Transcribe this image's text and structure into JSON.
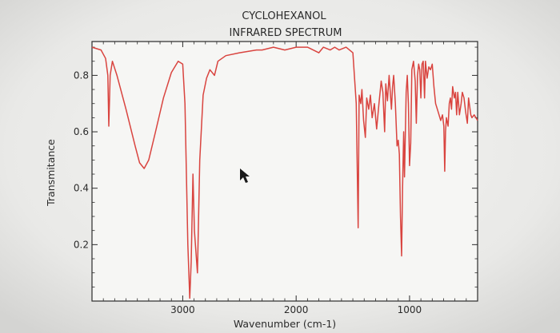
{
  "chart_data": {
    "type": "line",
    "title": "CYCLOHEXANOL",
    "subtitle": "INFRARED SPECTRUM",
    "xlabel": "Wavenumber (cm-1)",
    "ylabel": "Transmitance",
    "xlim": [
      3800,
      400
    ],
    "ylim": [
      0.0,
      0.92
    ],
    "x_reversed": true,
    "grid": false,
    "x_ticks": [
      3000,
      2000,
      1000
    ],
    "y_ticks": [
      0.2,
      0.4,
      0.6,
      0.8
    ],
    "y_tick_labels": [
      "0.2",
      "0.4",
      "0.6",
      "0.8"
    ],
    "series": [
      {
        "color": "#d9443f",
        "points": [
          [
            3800,
            0.9
          ],
          [
            3720,
            0.89
          ],
          [
            3680,
            0.86
          ],
          [
            3660,
            0.8
          ],
          [
            3652,
            0.62
          ],
          [
            3640,
            0.8
          ],
          [
            3620,
            0.85
          ],
          [
            3580,
            0.8
          ],
          [
            3500,
            0.68
          ],
          [
            3420,
            0.55
          ],
          [
            3380,
            0.49
          ],
          [
            3340,
            0.47
          ],
          [
            3300,
            0.5
          ],
          [
            3240,
            0.6
          ],
          [
            3170,
            0.72
          ],
          [
            3100,
            0.81
          ],
          [
            3040,
            0.85
          ],
          [
            3000,
            0.84
          ],
          [
            2980,
            0.7
          ],
          [
            2955,
            0.2
          ],
          [
            2938,
            0.01
          ],
          [
            2925,
            0.14
          ],
          [
            2910,
            0.45
          ],
          [
            2897,
            0.25
          ],
          [
            2870,
            0.1
          ],
          [
            2850,
            0.5
          ],
          [
            2820,
            0.73
          ],
          [
            2790,
            0.79
          ],
          [
            2760,
            0.82
          ],
          [
            2720,
            0.8
          ],
          [
            2690,
            0.85
          ],
          [
            2620,
            0.87
          ],
          [
            2500,
            0.88
          ],
          [
            2350,
            0.89
          ],
          [
            2300,
            0.89
          ],
          [
            2200,
            0.9
          ],
          [
            2100,
            0.89
          ],
          [
            2000,
            0.9
          ],
          [
            1900,
            0.9
          ],
          [
            1800,
            0.88
          ],
          [
            1760,
            0.9
          ],
          [
            1700,
            0.89
          ],
          [
            1660,
            0.9
          ],
          [
            1620,
            0.89
          ],
          [
            1560,
            0.9
          ],
          [
            1500,
            0.88
          ],
          [
            1470,
            0.7
          ],
          [
            1453,
            0.26
          ],
          [
            1445,
            0.73
          ],
          [
            1430,
            0.7
          ],
          [
            1420,
            0.75
          ],
          [
            1405,
            0.64
          ],
          [
            1390,
            0.58
          ],
          [
            1378,
            0.72
          ],
          [
            1360,
            0.68
          ],
          [
            1345,
            0.73
          ],
          [
            1330,
            0.65
          ],
          [
            1310,
            0.7
          ],
          [
            1290,
            0.61
          ],
          [
            1270,
            0.7
          ],
          [
            1250,
            0.78
          ],
          [
            1235,
            0.74
          ],
          [
            1220,
            0.6
          ],
          [
            1210,
            0.77
          ],
          [
            1195,
            0.71
          ],
          [
            1180,
            0.8
          ],
          [
            1160,
            0.68
          ],
          [
            1150,
            0.76
          ],
          [
            1140,
            0.8
          ],
          [
            1125,
            0.7
          ],
          [
            1110,
            0.55
          ],
          [
            1100,
            0.57
          ],
          [
            1090,
            0.52
          ],
          [
            1080,
            0.3
          ],
          [
            1070,
            0.16
          ],
          [
            1062,
            0.4
          ],
          [
            1052,
            0.6
          ],
          [
            1045,
            0.44
          ],
          [
            1038,
            0.58
          ],
          [
            1030,
            0.74
          ],
          [
            1020,
            0.8
          ],
          [
            1010,
            0.7
          ],
          [
            1000,
            0.48
          ],
          [
            990,
            0.56
          ],
          [
            980,
            0.82
          ],
          [
            965,
            0.85
          ],
          [
            950,
            0.78
          ],
          [
            940,
            0.63
          ],
          [
            930,
            0.8
          ],
          [
            920,
            0.84
          ],
          [
            910,
            0.82
          ],
          [
            900,
            0.72
          ],
          [
            890,
            0.84
          ],
          [
            880,
            0.85
          ],
          [
            868,
            0.72
          ],
          [
            860,
            0.85
          ],
          [
            845,
            0.79
          ],
          [
            830,
            0.83
          ],
          [
            815,
            0.82
          ],
          [
            800,
            0.84
          ],
          [
            785,
            0.76
          ],
          [
            770,
            0.7
          ],
          [
            755,
            0.68
          ],
          [
            740,
            0.66
          ],
          [
            725,
            0.64
          ],
          [
            710,
            0.66
          ],
          [
            698,
            0.62
          ],
          [
            690,
            0.46
          ],
          [
            683,
            0.6
          ],
          [
            675,
            0.65
          ],
          [
            660,
            0.62
          ],
          [
            650,
            0.7
          ],
          [
            640,
            0.72
          ],
          [
            630,
            0.68
          ],
          [
            620,
            0.76
          ],
          [
            605,
            0.72
          ],
          [
            595,
            0.74
          ],
          [
            585,
            0.66
          ],
          [
            575,
            0.74
          ],
          [
            560,
            0.66
          ],
          [
            545,
            0.7
          ],
          [
            535,
            0.74
          ],
          [
            520,
            0.72
          ],
          [
            505,
            0.67
          ],
          [
            490,
            0.63
          ],
          [
            480,
            0.72
          ],
          [
            470,
            0.69
          ],
          [
            460,
            0.66
          ],
          [
            450,
            0.65
          ],
          [
            430,
            0.66
          ],
          [
            400,
            0.64
          ]
        ]
      }
    ]
  }
}
